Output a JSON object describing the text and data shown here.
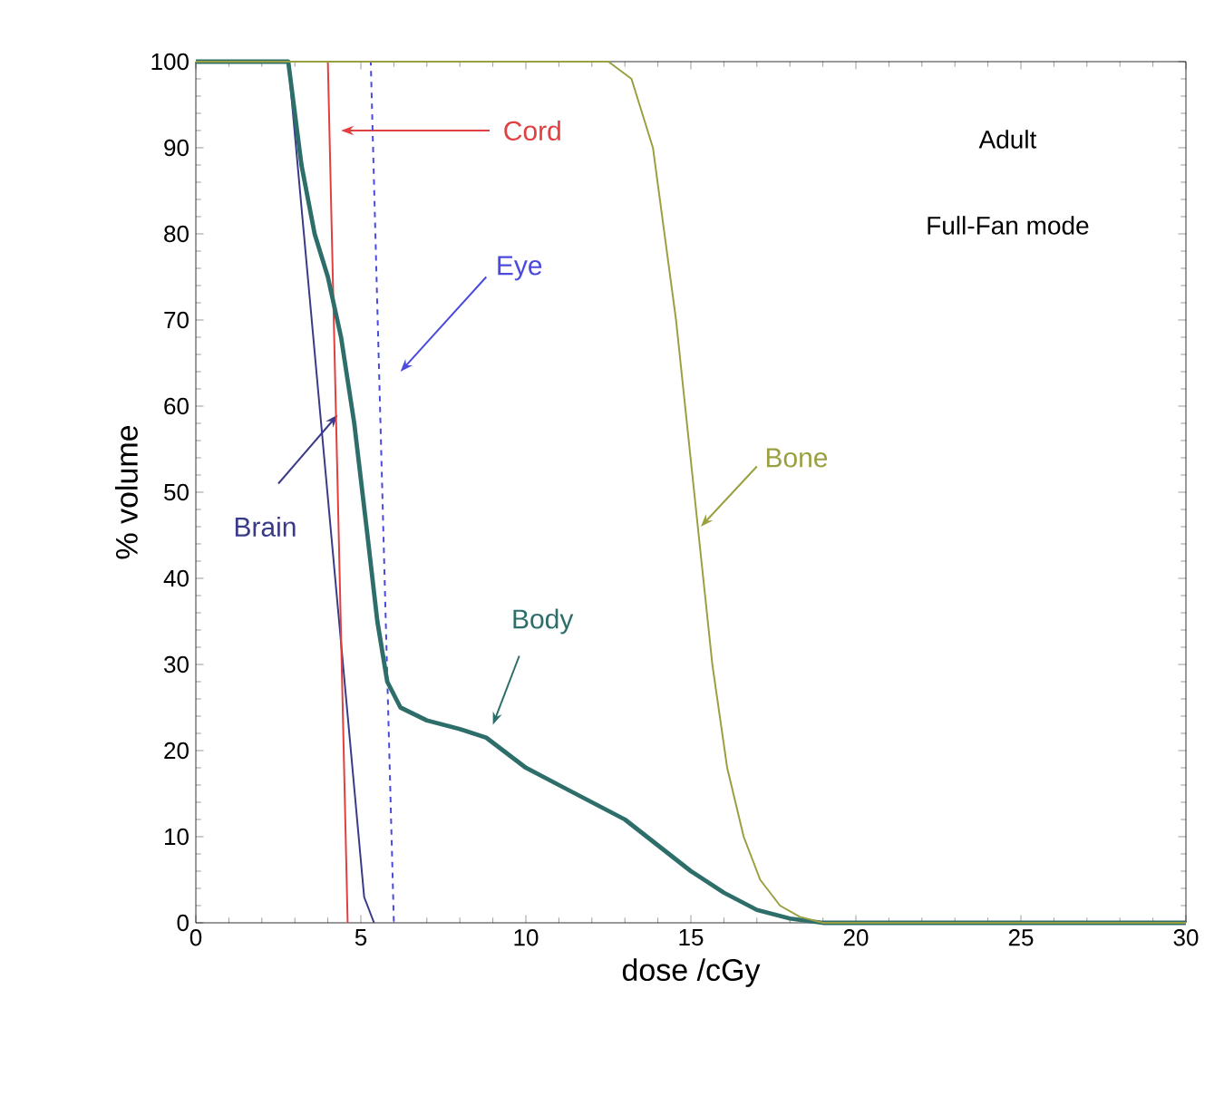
{
  "chart_data": {
    "type": "line",
    "xlabel": "dose /cGy",
    "ylabel": "% volume",
    "xlim": [
      0,
      30
    ],
    "ylim": [
      0,
      100
    ],
    "xticks": [
      0,
      5,
      10,
      15,
      20,
      25,
      30
    ],
    "yticks": [
      0,
      10,
      20,
      30,
      40,
      50,
      60,
      70,
      80,
      90,
      100
    ],
    "grid": false,
    "legend": false,
    "marker": "none",
    "annotations": [
      "Adult",
      "Full-Fan mode"
    ],
    "series": [
      {
        "name": "Brain",
        "color": "#3a3a8a",
        "x": [
          0,
          2.8,
          5.1,
          5.4
        ],
        "values": [
          100,
          100,
          3,
          0
        ]
      },
      {
        "name": "Cord",
        "color": "#e04040",
        "x": [
          0,
          4.0,
          4.6
        ],
        "values": [
          100,
          100,
          0
        ]
      },
      {
        "name": "Eye",
        "color": "#4a4ae0",
        "line_style": "dashed",
        "x": [
          0,
          5.3,
          6.0
        ],
        "values": [
          100,
          100,
          0
        ]
      },
      {
        "name": "Body",
        "color": "#2e6e6a",
        "x": [
          0,
          2.8,
          3.2,
          3.6,
          4.0,
          4.4,
          4.8,
          5.2,
          5.5,
          5.8,
          6.2,
          7,
          8,
          8.8,
          10,
          11,
          12,
          13,
          14,
          15,
          16,
          17,
          18,
          19,
          20,
          25,
          30
        ],
        "values": [
          100,
          100,
          88,
          80,
          75,
          68,
          58,
          45,
          35,
          28,
          25,
          23.5,
          22.5,
          21.5,
          18,
          16,
          14,
          12,
          9,
          6,
          3.5,
          1.5,
          0.5,
          0,
          0,
          0,
          0
        ]
      },
      {
        "name": "Bone",
        "color": "#9aa040",
        "x": [
          0,
          12.5,
          13.2,
          13.85,
          14.55,
          15.1,
          15.65,
          16.1,
          16.6,
          17.1,
          17.7,
          18.3,
          19,
          25,
          30
        ],
        "values": [
          100,
          100,
          98,
          90,
          70,
          50,
          30,
          18,
          10,
          5,
          2,
          0.7,
          0,
          0,
          0
        ]
      }
    ]
  }
}
